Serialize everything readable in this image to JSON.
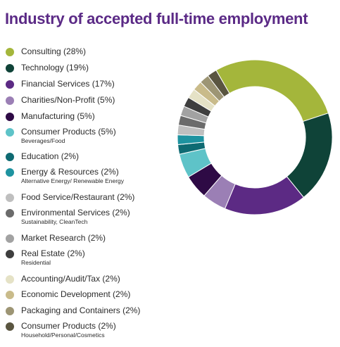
{
  "chart_data": {
    "type": "pie",
    "title": "Industry of accepted full-time employment",
    "slices": [
      {
        "label": "Consulting (28%)",
        "sublabel": "",
        "value": 28,
        "color": "#a4b63b"
      },
      {
        "label": "Technology (19%)",
        "sublabel": "",
        "value": 19,
        "color": "#0f4338"
      },
      {
        "label": "Financial Services (17%)",
        "sublabel": "",
        "value": 17,
        "color": "#5c2a84"
      },
      {
        "label": "Charities/Non-Profit (5%)",
        "sublabel": "",
        "value": 5,
        "color": "#9b7fb5"
      },
      {
        "label": "Manufacturing (5%)",
        "sublabel": "",
        "value": 5,
        "color": "#2e0a45"
      },
      {
        "label": "Consumer Products (5%)",
        "sublabel": "Beverages/Food",
        "value": 5,
        "color": "#5ec3c8"
      },
      {
        "label": "Education (2%)",
        "sublabel": "",
        "value": 2,
        "color": "#0e6a72"
      },
      {
        "label": "Energy & Resources (2%)",
        "sublabel": "Alternative Energy/ Renewable Energy",
        "value": 2,
        "color": "#1e93a0"
      },
      {
        "label": "Food Service/Restaurant (2%)",
        "sublabel": "",
        "value": 2,
        "color": "#bfbfbf"
      },
      {
        "label": "Environmental Services (2%)",
        "sublabel": "Sustainability, CleanTech",
        "value": 2,
        "color": "#6b6b6b"
      },
      {
        "label": "Market Research (2%)",
        "sublabel": "",
        "value": 2,
        "color": "#a2a2a2"
      },
      {
        "label": "Real Estate (2%)",
        "sublabel": "Residential",
        "value": 2,
        "color": "#3e3e3e"
      },
      {
        "label": "Accounting/Audit/Tax (2%)",
        "sublabel": "",
        "value": 2,
        "color": "#e5e2c6"
      },
      {
        "label": "Economic Development (2%)",
        "sublabel": "",
        "value": 2,
        "color": "#c9bb8a"
      },
      {
        "label": "Packaging and Containers (2%)",
        "sublabel": "",
        "value": 2,
        "color": "#9d9574"
      },
      {
        "label": "Consumer Products (2%)",
        "sublabel": "Household/Personal/Cosmetics",
        "value": 2,
        "color": "#5a5540"
      }
    ]
  }
}
